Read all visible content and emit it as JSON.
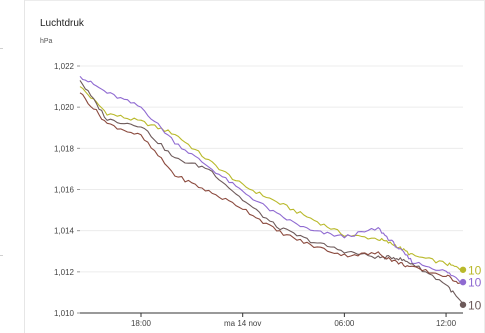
{
  "chart_data": {
    "type": "line",
    "title": "Luchtdruk",
    "ylabel": "hPa",
    "xlabel": "",
    "ylim": [
      1.01,
      1.022
    ],
    "y_ticks": [
      "1,010",
      "1,012",
      "1,014",
      "1,016",
      "1,018",
      "1,020",
      "1,022"
    ],
    "y_tick_values": [
      1.01,
      1.012,
      1.014,
      1.016,
      1.018,
      1.02,
      1.022
    ],
    "x_tick_labels": [
      "18:00",
      "ma 14 nov",
      "06:00",
      "12:00"
    ],
    "x_tick_hours": [
      18,
      24,
      30,
      36
    ],
    "x_range_hours": [
      14.4,
      37.0
    ],
    "grid": "horizontal",
    "series": [
      {
        "color": "#b9b92b",
        "end_label": "10",
        "x_hours": [
          14.4,
          16,
          18,
          20,
          22,
          24,
          26,
          28,
          30,
          32,
          33,
          34,
          36,
          37
        ],
        "values": [
          1.021,
          1.0197,
          1.0193,
          1.0187,
          1.0174,
          1.0162,
          1.0154,
          1.0146,
          1.0138,
          1.0136,
          1.0133,
          1.0128,
          1.0124,
          1.0121
        ]
      },
      {
        "color": "#8f6ad1",
        "end_label": "10",
        "x_hours": [
          14.4,
          16,
          18,
          20,
          22,
          24,
          26,
          28,
          30,
          32,
          33,
          34,
          36,
          37
        ],
        "values": [
          1.0215,
          1.0207,
          1.02,
          1.0183,
          1.0171,
          1.0159,
          1.0148,
          1.014,
          1.0137,
          1.0141,
          1.0133,
          1.0125,
          1.012,
          1.0115
        ]
      },
      {
        "color": "#6d5a5a",
        "end_label": "10",
        "x_hours": [
          14.4,
          16,
          18,
          20,
          22,
          24,
          26,
          28,
          30,
          32,
          33,
          34,
          36,
          37
        ],
        "values": [
          1.0213,
          1.0194,
          1.0191,
          1.0175,
          1.017,
          1.0155,
          1.0142,
          1.0135,
          1.013,
          1.0127,
          1.0127,
          1.0124,
          1.0114,
          1.0104
        ]
      },
      {
        "color": "#8b4a3e",
        "end_label": "",
        "x_hours": [
          14.4,
          16,
          18,
          20,
          22,
          24,
          26,
          28,
          30,
          32,
          33,
          34,
          36,
          37
        ],
        "values": [
          1.0207,
          1.0192,
          1.0186,
          1.0167,
          1.0159,
          1.0151,
          1.014,
          1.0133,
          1.0128,
          1.0129,
          1.0125,
          1.0122,
          1.0118,
          1.0114
        ]
      }
    ]
  }
}
